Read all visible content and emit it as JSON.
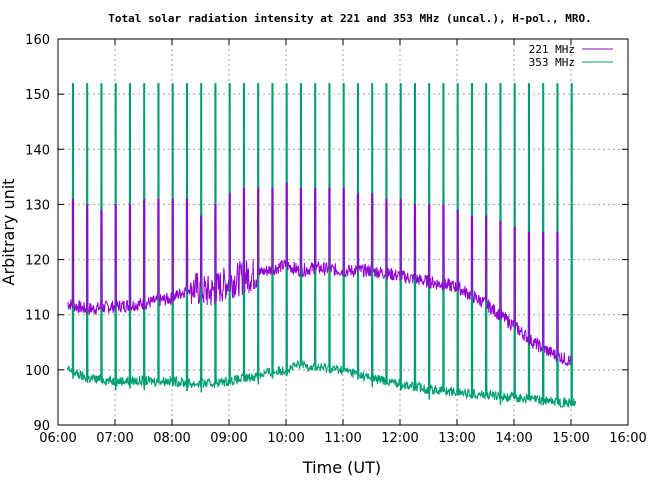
{
  "chart_data": {
    "type": "line",
    "title": "Total solar radiation intensity at 221 and 353 MHz (uncal.), H-pol., MRO.",
    "xlabel": "Time (UT)",
    "ylabel": "Arbitrary unit",
    "xlim": [
      "06:00",
      "16:00"
    ],
    "ylim": [
      90,
      160
    ],
    "x_ticks": [
      "06:00",
      "07:00",
      "08:00",
      "09:00",
      "10:00",
      "11:00",
      "12:00",
      "13:00",
      "14:00",
      "15:00",
      "16:00"
    ],
    "y_ticks": [
      90,
      100,
      110,
      120,
      130,
      140,
      150,
      160
    ],
    "grid": true,
    "legend_position": "top-right",
    "calibration_spikes": {
      "interval_minutes": 15,
      "first": "06:15",
      "last": "15:05",
      "peak_221_MHz": [
        131,
        130,
        129,
        130,
        130,
        131,
        131,
        131,
        131,
        128,
        130,
        132,
        133,
        133,
        133,
        134,
        133,
        133,
        133,
        133,
        132,
        132,
        131,
        131,
        130,
        130,
        130,
        129,
        128,
        128,
        127,
        126,
        125,
        125,
        125
      ],
      "peak_353_MHz": 152
    },
    "series": [
      {
        "name": "221 MHz",
        "color": "#9400d3",
        "x": [
          "06:10",
          "06:30",
          "07:00",
          "07:30",
          "08:00",
          "08:20",
          "08:40",
          "09:00",
          "09:20",
          "09:40",
          "10:00",
          "10:15",
          "10:30",
          "11:00",
          "11:30",
          "12:00",
          "12:15",
          "12:30",
          "13:00",
          "13:30",
          "13:45",
          "14:00",
          "14:20",
          "14:40",
          "15:00",
          "15:05"
        ],
        "values": [
          112,
          111,
          111.5,
          112,
          113,
          115,
          114,
          116,
          117,
          118,
          119,
          118,
          118.5,
          118,
          118,
          117,
          116.5,
          116,
          115,
          112,
          110,
          108,
          105,
          103,
          101.5,
          101
        ]
      },
      {
        "name": "353 MHz",
        "color": "#009e73",
        "x": [
          "06:10",
          "06:30",
          "07:00",
          "07:30",
          "08:00",
          "08:20",
          "08:40",
          "09:00",
          "09:20",
          "09:40",
          "10:00",
          "10:15",
          "10:30",
          "11:00",
          "11:30",
          "12:00",
          "12:15",
          "12:30",
          "13:00",
          "13:30",
          "14:00",
          "14:30",
          "15:00",
          "15:05"
        ],
        "values": [
          100,
          98.5,
          98,
          98,
          98,
          97.5,
          97.5,
          98,
          98.5,
          99.5,
          100,
          101,
          100.5,
          100,
          98.5,
          97.5,
          97,
          96.5,
          96,
          95.5,
          95,
          94.5,
          94,
          94
        ]
      }
    ]
  }
}
